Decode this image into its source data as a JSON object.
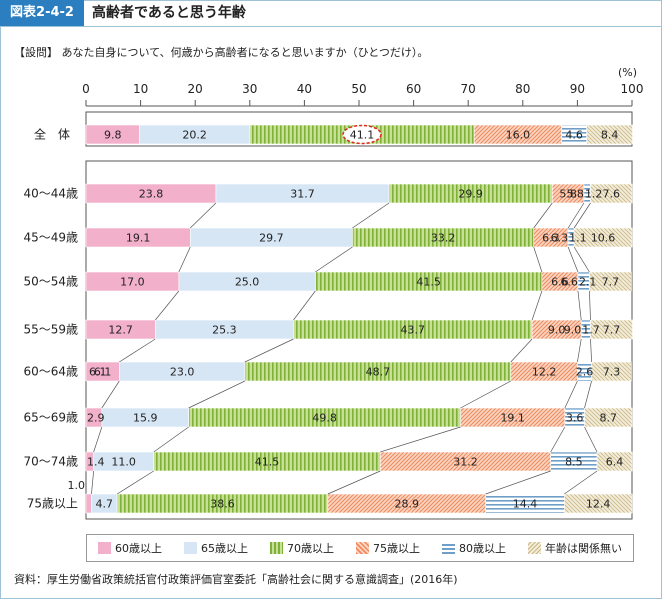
{
  "header": {
    "figure_label": "図表2-4-2",
    "title": "高齢者であると思う年齢"
  },
  "question": "【設問】 あなた自身について、何歳から高齢者になると思いますか（ひとつだけ）。",
  "unit": "(%)",
  "source": "資料：厚生労働省政策統括官付政策評価官室委託「高齢社会に関する意識調査」(2016年)",
  "colors": {
    "c60": "#f2b0cb",
    "c65": "#d7e6f5",
    "c70": "#9ecb56",
    "c75": "#f4a27e",
    "c80": "#6f9fc8",
    "cna": "#e3d8b4"
  },
  "chart_data": {
    "type": "bar",
    "orientation": "horizontal",
    "stacked": true,
    "xlim": [
      0,
      100
    ],
    "xticks": [
      "0",
      "10",
      "20",
      "30",
      "40",
      "50",
      "60",
      "70",
      "80",
      "90",
      "100"
    ],
    "categories": [
      "全　体",
      "40～44歳",
      "45～49歳",
      "50～54歳",
      "55～59歳",
      "60～64歳",
      "65～69歳",
      "70～74歳",
      "75歳以上"
    ],
    "series": [
      {
        "name": "60歳以上",
        "values": [
          9.8,
          23.8,
          19.1,
          17.0,
          12.7,
          6.1,
          2.9,
          1.4,
          1.0
        ]
      },
      {
        "name": "65歳以上",
        "values": [
          20.2,
          31.7,
          29.7,
          25.0,
          25.3,
          23.0,
          15.9,
          11.0,
          4.7
        ]
      },
      {
        "name": "70歳以上",
        "values": [
          41.1,
          29.9,
          33.2,
          41.5,
          43.7,
          48.7,
          49.8,
          41.5,
          38.6
        ]
      },
      {
        "name": "75歳以上",
        "values": [
          16.0,
          5.8,
          6.3,
          6.6,
          9.0,
          12.2,
          19.1,
          31.2,
          28.9
        ]
      },
      {
        "name": "80歳以上",
        "values": [
          4.6,
          1.2,
          1.1,
          2.1,
          1.7,
          2.6,
          3.6,
          8.5,
          14.4
        ]
      },
      {
        "name": "年齢は関係無い",
        "values": [
          8.4,
          7.6,
          10.6,
          7.7,
          7.7,
          7.3,
          8.7,
          6.4,
          12.4
        ]
      }
    ],
    "labels": [
      [
        "9.8",
        "20.2",
        "41.1",
        "16.0",
        "4.6",
        "8.4"
      ],
      [
        "23.8",
        "31.7",
        "29.9",
        "5.8",
        "1.2",
        "7.6"
      ],
      [
        "19.1",
        "29.7",
        "33.2",
        "6.3",
        "1.1",
        "10.6"
      ],
      [
        "17.0",
        "25.0",
        "41.5",
        "6.6",
        "2.1",
        "7.7"
      ],
      [
        "12.7",
        "25.3",
        "43.7",
        "9.0",
        "1.7",
        "7.7"
      ],
      [
        "6.1",
        "23.0",
        "48.7",
        "12.2",
        "2.6",
        "7.3"
      ],
      [
        "2.9",
        "15.9",
        "49.8",
        "19.1",
        "3.6",
        "8.7"
      ],
      [
        "1.4",
        "11.0",
        "41.5",
        "31.2",
        "8.5",
        "6.4"
      ],
      [
        "1.0",
        "4.7",
        "38.6",
        "28.9",
        "14.4",
        "12.4"
      ]
    ],
    "highlight": {
      "row": 0,
      "series": 2
    },
    "legend_position": "bottom",
    "grid": false
  }
}
